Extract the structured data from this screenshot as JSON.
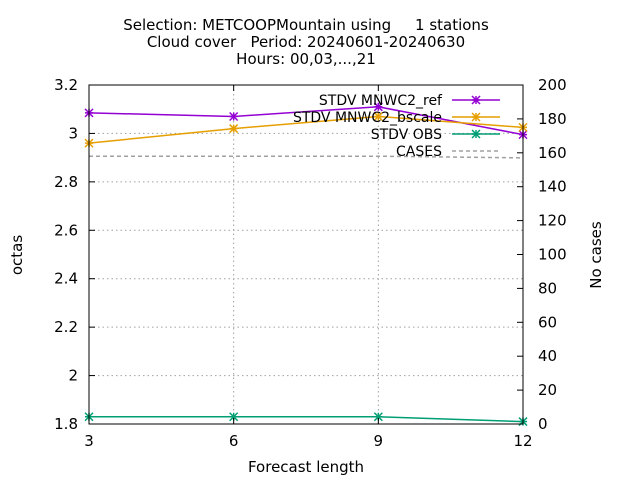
{
  "chart_data": {
    "type": "line",
    "title_lines": [
      "Selection: METCOOPMountain using     1 stations",
      "Cloud cover   Period: 20240601-20240630",
      "Hours: 00,03,...,21"
    ],
    "xlabel": "Forecast length",
    "ylabel": "octas",
    "y2label": "No cases",
    "x": [
      3,
      6,
      9,
      12
    ],
    "xlim": [
      3,
      12
    ],
    "ylim": [
      1.8,
      3.2
    ],
    "y2lim": [
      0,
      200
    ],
    "xticks": [
      "3",
      "6",
      "9",
      "12"
    ],
    "yticks": [
      "1.8",
      "2",
      "2.2",
      "2.4",
      "2.6",
      "2.8",
      "3",
      "3.2"
    ],
    "y2ticks": [
      "0",
      "20",
      "40",
      "60",
      "80",
      "100",
      "120",
      "140",
      "160",
      "180",
      "200"
    ],
    "grid": true,
    "legend_position": "top-right",
    "series": [
      {
        "name": "STDV MNWC2_ref",
        "axis": "y",
        "color": "#9400d3",
        "marker": "star",
        "values": [
          3.085,
          3.07,
          3.11,
          2.995
        ]
      },
      {
        "name": "STDV MNWC2_bscale",
        "axis": "y",
        "color": "#e69f00",
        "marker": "star",
        "values": [
          2.96,
          3.02,
          3.07,
          3.025
        ]
      },
      {
        "name": "STDV OBS",
        "axis": "y",
        "color": "#009e73",
        "marker": "star",
        "values": [
          1.83,
          1.83,
          1.83,
          1.81
        ]
      },
      {
        "name": "CASES",
        "axis": "y2",
        "color": "#a0a0a0",
        "marker": "none",
        "dashed": true,
        "values": [
          158,
          158,
          158,
          157
        ]
      }
    ]
  }
}
